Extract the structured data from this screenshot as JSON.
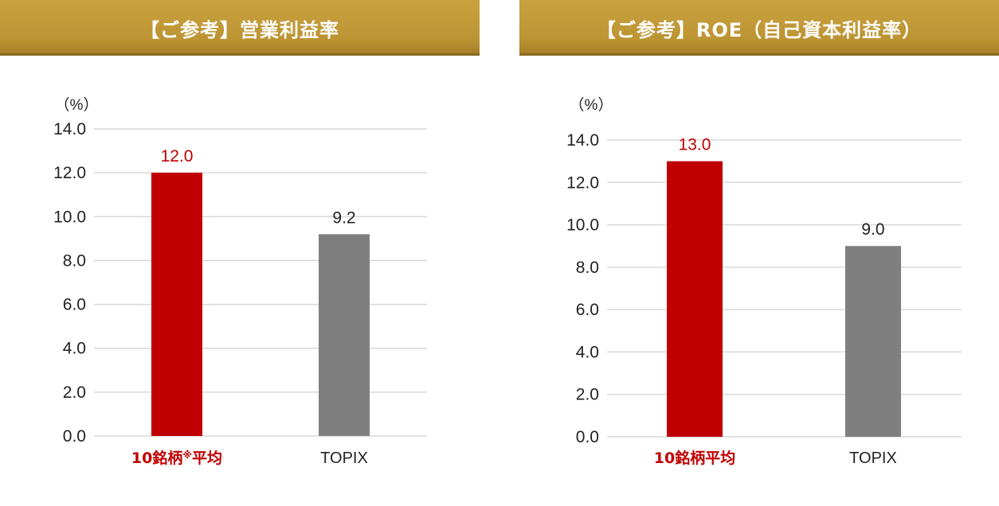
{
  "colors": {
    "header_gold": "#c19a38",
    "highlight_red": "#c00000",
    "comparison_gray": "#7f7f7f",
    "grid_line": "#d9d9d9",
    "axis_text": "#222222"
  },
  "panels": [
    {
      "title": "【ご参考】営業利益率",
      "unit": "（%）"
    },
    {
      "title": "【ご参考】ROE（自己資本利益率）",
      "unit": "（%）"
    }
  ],
  "chart_data": [
    {
      "type": "bar",
      "title": "【ご参考】営業利益率",
      "ylabel": "（%）",
      "xlabel": "",
      "ylim": [
        0,
        14
      ],
      "yticks": [
        "0.0",
        "2.0",
        "4.0",
        "6.0",
        "8.0",
        "10.0",
        "12.0",
        "14.0"
      ],
      "grid": true,
      "categories": [
        "10銘柄※平均",
        "TOPIX"
      ],
      "values": [
        12.0,
        9.2
      ],
      "value_labels": [
        "12.0",
        "9.2"
      ],
      "bar_colors": [
        "#c00000",
        "#7f7f7f"
      ],
      "label_colors": [
        "#c00000",
        "#222222"
      ],
      "category_label_colors": [
        "#c00000",
        "#222222"
      ]
    },
    {
      "type": "bar",
      "title": "【ご参考】ROE（自己資本利益率）",
      "ylabel": "（%）",
      "xlabel": "",
      "ylim": [
        0,
        14
      ],
      "yticks": [
        "0.0",
        "2.0",
        "4.0",
        "6.0",
        "8.0",
        "10.0",
        "12.0",
        "14.0"
      ],
      "grid": true,
      "categories": [
        "10銘柄平均",
        "TOPIX"
      ],
      "values": [
        13.0,
        9.0
      ],
      "value_labels": [
        "13.0",
        "9.0"
      ],
      "bar_colors": [
        "#c00000",
        "#7f7f7f"
      ],
      "label_colors": [
        "#c00000",
        "#222222"
      ],
      "category_label_colors": [
        "#c00000",
        "#222222"
      ]
    }
  ]
}
